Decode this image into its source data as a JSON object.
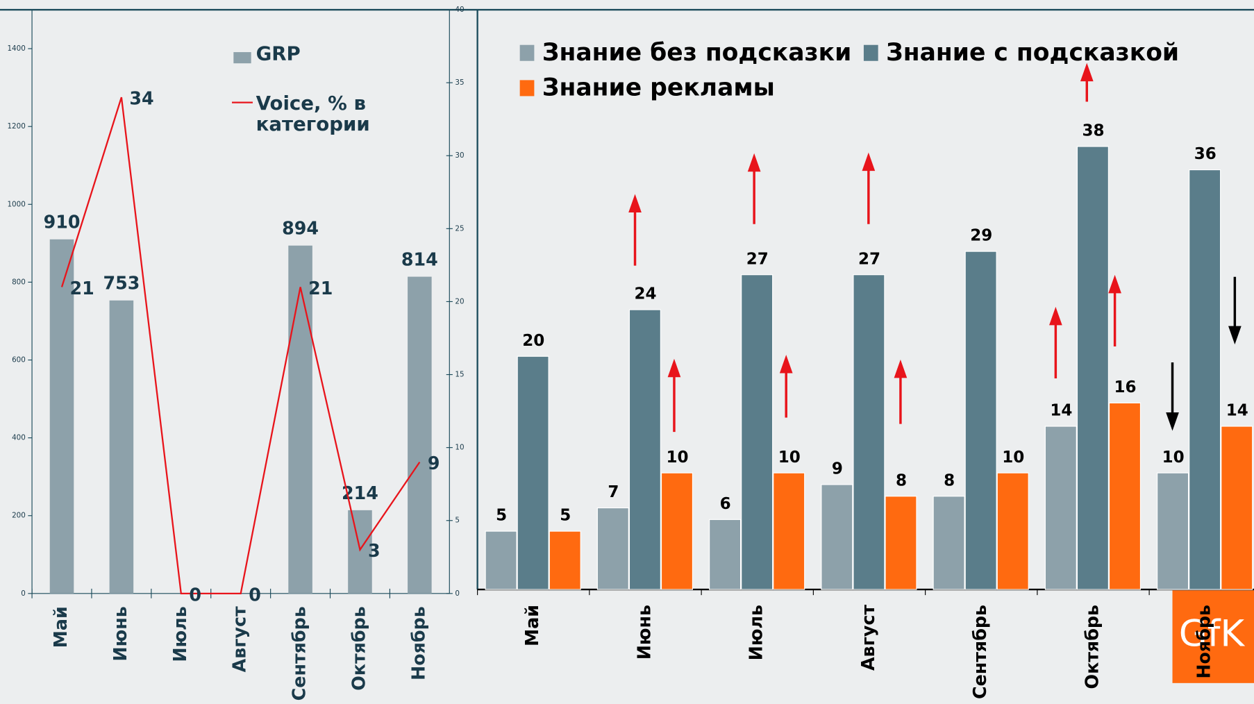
{
  "chart_data": [
    {
      "type": "bar_line",
      "categories": [
        "Май",
        "Июнь",
        "Июль",
        "Август",
        "Сентябрь",
        "Октябрь",
        "Ноябрь"
      ],
      "series": [
        {
          "name": "GRP",
          "type": "bar",
          "color": "#8da1aa",
          "values": [
            910,
            753,
            null,
            null,
            894,
            214,
            814
          ]
        },
        {
          "name": "Voice, % в категории",
          "type": "line",
          "axis": "y2",
          "color": "#e8141b",
          "values": [
            21,
            34,
            0,
            0,
            21,
            3,
            9
          ]
        }
      ],
      "ylim": [
        0,
        1500
      ],
      "yticks": [
        0,
        200,
        400,
        600,
        800,
        1000,
        1200,
        1400
      ],
      "y2lim": [
        0,
        40
      ],
      "y2ticks": [
        0,
        5,
        10,
        15,
        20,
        25,
        30,
        35,
        40
      ]
    },
    {
      "type": "bar",
      "categories": [
        "Май",
        "Июнь",
        "Июль",
        "Август",
        "Сентябрь",
        "Октябрь",
        "Ноябрь"
      ],
      "series": [
        {
          "name": "Знание без подсказки",
          "color": "#8da1aa",
          "values": [
            5,
            7,
            6,
            9,
            8,
            14,
            10
          ]
        },
        {
          "name": "Знание с подсказкой",
          "color": "#5a7d8a",
          "values": [
            20,
            24,
            27,
            27,
            29,
            38,
            36
          ]
        },
        {
          "name": "Знание рекламы",
          "color": "#ff6a10",
          "values": [
            5,
            10,
            10,
            8,
            10,
            16,
            14
          ]
        }
      ]
    }
  ],
  "logo": "GfK"
}
